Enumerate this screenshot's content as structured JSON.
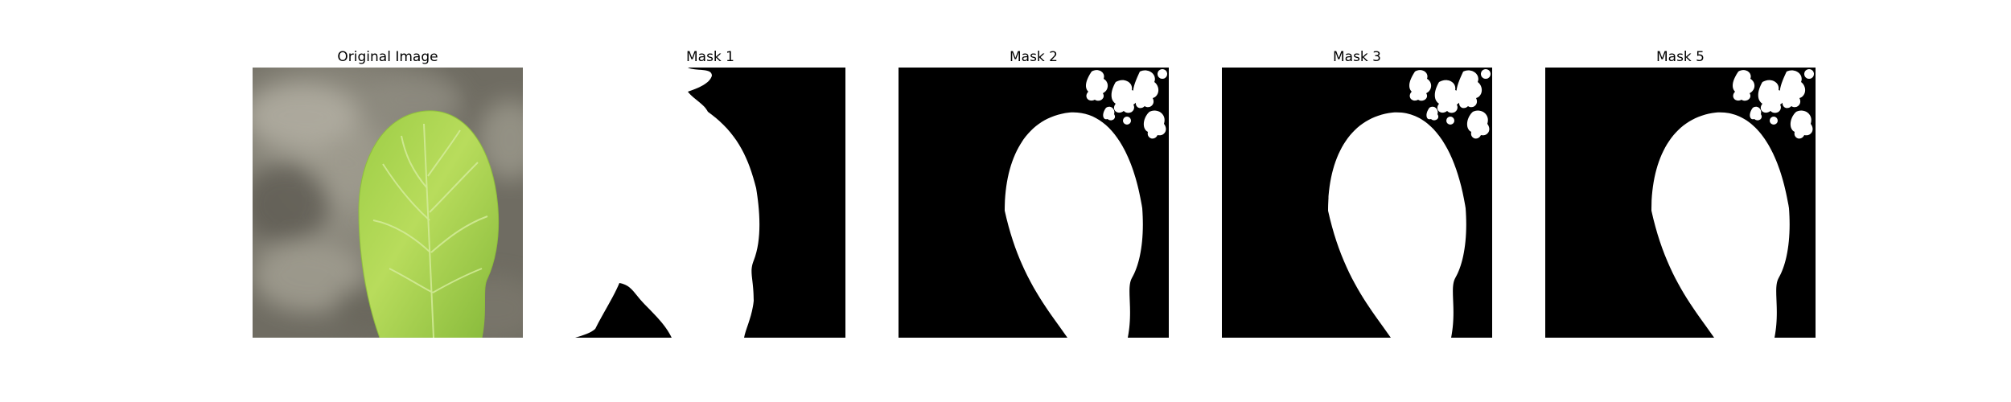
{
  "panels": [
    {
      "title": "Original Image"
    },
    {
      "title": "Mask 1"
    },
    {
      "title": "Mask 2"
    },
    {
      "title": "Mask 3"
    },
    {
      "title": "Mask 5"
    }
  ],
  "colors": {
    "background": "#ffffff",
    "mask_foreground": "#ffffff",
    "mask_background": "#000000",
    "leaf_light": "#b9dc5a",
    "leaf_dark": "#7fb533",
    "backdrop_gray": "#8a877d"
  }
}
